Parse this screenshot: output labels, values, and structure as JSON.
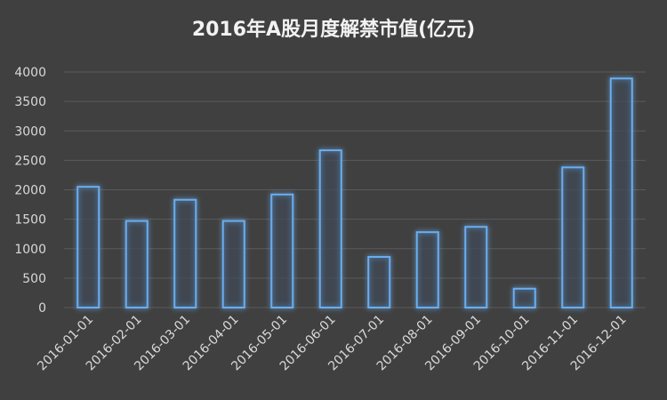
{
  "chart_data": {
    "type": "bar",
    "title": "2016年A股月度解禁市值(亿元)",
    "categories": [
      "2016-01-01",
      "2016-02-01",
      "2016-03-01",
      "2016-04-01",
      "2016-05-01",
      "2016-06-01",
      "2016-07-01",
      "2016-08-01",
      "2016-09-01",
      "2016-10-01",
      "2016-11-01",
      "2016-12-01"
    ],
    "values": [
      2050,
      1470,
      1830,
      1470,
      1920,
      2670,
      860,
      1280,
      1370,
      320,
      2380,
      3890
    ],
    "color": "#6aaef0",
    "ylim": [
      0,
      4000
    ],
    "yticks": [
      0,
      500,
      1000,
      1500,
      2000,
      2500,
      3000,
      3500,
      4000
    ],
    "grid": true
  }
}
